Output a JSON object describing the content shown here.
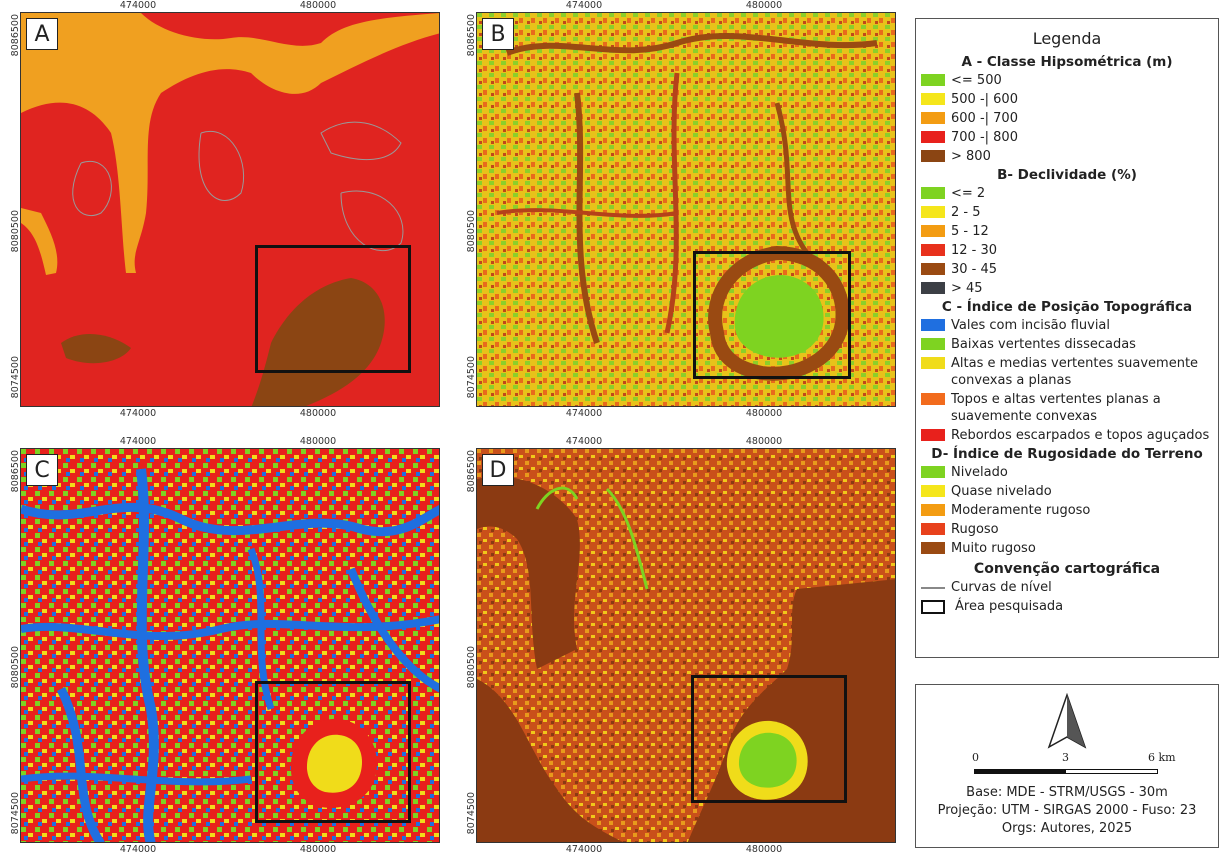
{
  "panels": [
    {
      "letter": "A",
      "x_ticks": [
        "474000",
        "480000"
      ],
      "y_ticks": [
        "8086500",
        "8080500",
        "8074500"
      ]
    },
    {
      "letter": "B",
      "x_ticks": [
        "474000",
        "480000"
      ],
      "y_ticks": [
        "8086500",
        "8080500",
        "8074500"
      ]
    },
    {
      "letter": "C",
      "x_ticks": [
        "474000",
        "480000"
      ],
      "y_ticks": [
        "8086500",
        "8080500",
        "8074500"
      ]
    },
    {
      "letter": "D",
      "x_ticks": [
        "474000",
        "480000"
      ],
      "y_ticks": [
        "8086500",
        "8080500",
        "8074500"
      ]
    }
  ],
  "legend": {
    "title": "Legenda",
    "sections": [
      {
        "title": "A - Classe Hipsométrica (m)",
        "items": [
          {
            "label": "<= 500",
            "color": "#7ed321"
          },
          {
            "label": "500 -| 600",
            "color": "#f5e61b"
          },
          {
            "label": "600 -| 700",
            "color": "#f39c12"
          },
          {
            "label": "700 -| 800",
            "color": "#e8211c"
          },
          {
            "label": "> 800",
            "color": "#8b4513"
          }
        ]
      },
      {
        "title": "B- Declividade (%)",
        "items": [
          {
            "label": "<= 2",
            "color": "#7ed321"
          },
          {
            "label": "2 - 5",
            "color": "#f5e61b"
          },
          {
            "label": "5 - 12",
            "color": "#f39c12"
          },
          {
            "label": "12 - 30",
            "color": "#e8311c"
          },
          {
            "label": "30 - 45",
            "color": "#9a4a12"
          },
          {
            "label": "> 45",
            "color": "#3c3f45"
          }
        ]
      },
      {
        "title": "C - Índice de Posição Topográfica",
        "items": [
          {
            "label": "Vales com incisão fluvial",
            "color": "#1f6fe0"
          },
          {
            "label": "Baixas vertentes dissecadas",
            "color": "#7ed321"
          },
          {
            "label": "Altas e medias vertentes suavemente convexas a planas",
            "color": "#f0dc1a"
          },
          {
            "label": "Topos e altas vertentes planas a suavemente convexas",
            "color": "#f26b1d"
          },
          {
            "label": "Rebordos escarpados e topos aguçados",
            "color": "#e8211c"
          }
        ]
      },
      {
        "title": "D- Índice de Rugosidade do Terreno",
        "items": [
          {
            "label": "Nivelado",
            "color": "#7ed321"
          },
          {
            "label": "Quase nivelado",
            "color": "#f5e61b"
          },
          {
            "label": "Moderamente rugoso",
            "color": "#f39c12"
          },
          {
            "label": "Rugoso",
            "color": "#e8411c"
          },
          {
            "label": "Muito rugoso",
            "color": "#9a4a12"
          }
        ]
      }
    ],
    "convention": {
      "title": "Convenção cartográfica",
      "contour_label": "Curvas de nível",
      "area_label": "Área pesquisada"
    }
  },
  "scalebar": {
    "labels": [
      "0",
      "3",
      "6 km"
    ]
  },
  "info": {
    "base": "Base: MDE - STRM/USGS - 30m",
    "projection": "Projeção: UTM - SIRGAS 2000 - Fuso: 23",
    "authors": "Orgs: Autores, 2025"
  }
}
